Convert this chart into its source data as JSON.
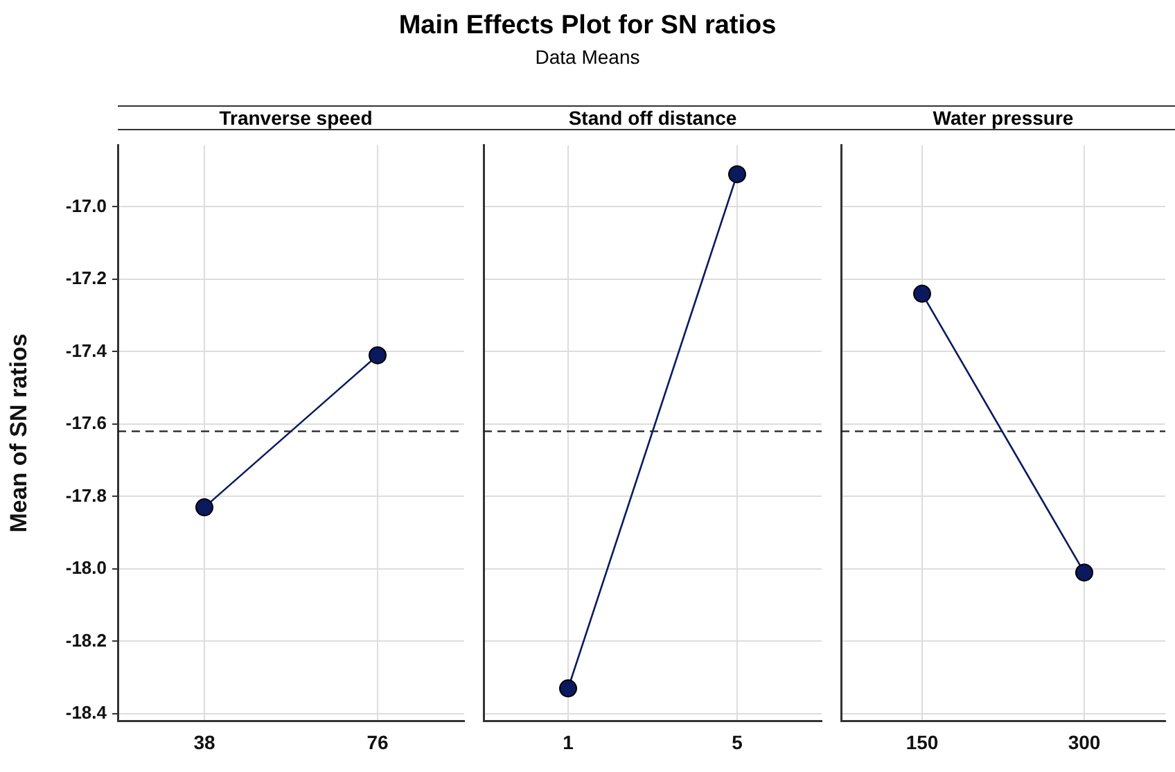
{
  "chart_data": [
    {
      "type": "line",
      "xlabel": "Tranverse speed",
      "ylabel": "Mean of SN ratios",
      "categories": [
        "38",
        "76"
      ],
      "series": [
        {
          "color": "#0b1a5e",
          "values": [
            -17.83,
            -17.41
          ]
        }
      ],
      "ylim": [
        -18.42,
        -16.83
      ],
      "yticks": [
        -18.4,
        -18.2,
        {
          "value": -18,
          "label": "-18.0"
        },
        -17.8,
        -17.6,
        -17.4,
        -17.2,
        {
          "value": -17,
          "label": "-17.0"
        }
      ],
      "grid": true,
      "marker": "circle",
      "line_style": "solid",
      "ref_lines": [
        {
          "axis": "y",
          "value": -17.62,
          "line_style": "dashed"
        }
      ]
    },
    {
      "type": "line",
      "title": "Main Effects Plot for SN ratios",
      "subtitle": "Data Means",
      "xlabel": "Stand off distance",
      "categories": [
        "1",
        "5"
      ],
      "series": [
        {
          "color": "#0b1a5e",
          "values": [
            -18.33,
            -16.91
          ]
        }
      ],
      "ylim": [
        -18.42,
        -16.83
      ],
      "yticks": [
        -18.4,
        -18.2,
        -18,
        -17.8,
        -17.6,
        -17.4,
        -17.2,
        -17
      ],
      "grid": true,
      "marker": "circle",
      "line_style": "solid",
      "tick_labels": "x",
      "ref_lines": [
        {
          "axis": "y",
          "value": -17.62,
          "line_style": "dashed"
        }
      ]
    },
    {
      "type": "line",
      "xlabel": "Water pressure",
      "categories": [
        "150",
        "300"
      ],
      "series": [
        {
          "color": "#0b1a5e",
          "values": [
            -17.24,
            -18.01
          ]
        }
      ],
      "ylim": [
        -18.42,
        -16.83
      ],
      "yticks": [
        -18.4,
        -18.2,
        -18,
        -17.8,
        -17.6,
        -17.4,
        -17.2,
        -17
      ],
      "grid": true,
      "marker": "circle",
      "line_style": "solid",
      "tick_labels": "x",
      "ref_lines": [
        {
          "axis": "y",
          "value": -17.62,
          "line_style": "dashed"
        }
      ]
    }
  ]
}
